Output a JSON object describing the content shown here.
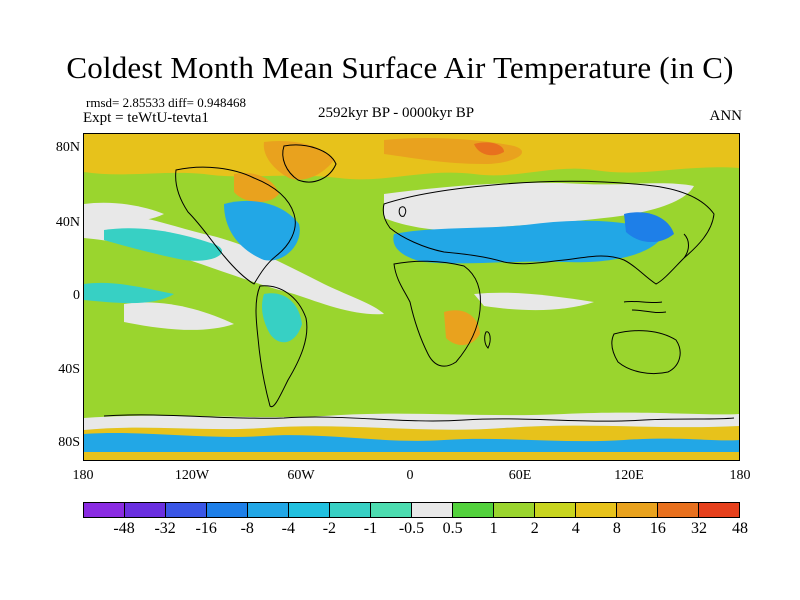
{
  "title": "Coldest Month Mean Surface Air Temperature (in C)",
  "stats": "rmsd= 2.85533 diff= 0.948468",
  "experiment": "Expt = teWtU-tevta1",
  "period": "2592kyr BP - 0000kyr BP",
  "season": "ANN",
  "lat_ticks": [
    "80N",
    "40N",
    "0",
    "40S",
    "80S"
  ],
  "lon_ticks": [
    "180",
    "120W",
    "60W",
    "0",
    "60E",
    "120E",
    "180"
  ],
  "colorbar": {
    "labels": [
      "-48",
      "-32",
      "-16",
      "-8",
      "-4",
      "-2",
      "-1",
      "-0.5",
      "0.5",
      "1",
      "2",
      "4",
      "8",
      "16",
      "32",
      "48"
    ],
    "colors": [
      "#8a2be2",
      "#6a2fe0",
      "#3a56e6",
      "#1e7fe8",
      "#22a7e6",
      "#21c0df",
      "#37d0c4",
      "#4cdcb0",
      "#e8e8e8",
      "#52d13c",
      "#9ad52e",
      "#c8d51f",
      "#e7c21b",
      "#e9a21e",
      "#e8701e",
      "#e6401c"
    ]
  },
  "map_colors": {
    "ocean_base": "#9ad52e",
    "land_base": "#c8d51f",
    "neutral": "#e8e8e8",
    "cool1": "#37d0c4",
    "cool2": "#22a7e6",
    "cool3": "#1e7fe8",
    "warm1": "#e7c21b",
    "warm2": "#e9a21e",
    "warm3": "#e8701e",
    "coast": "#000000"
  }
}
